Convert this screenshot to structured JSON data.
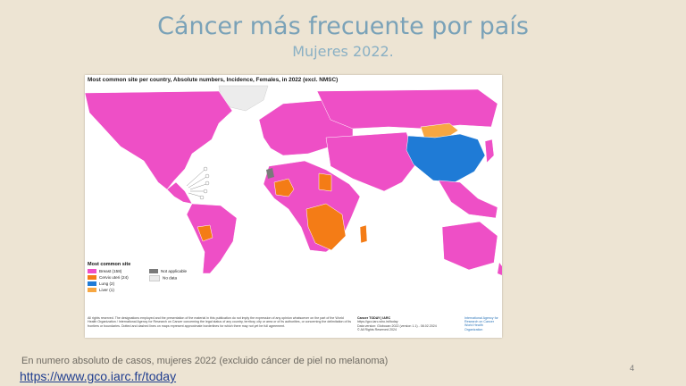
{
  "slide": {
    "title": "Cáncer más frecuente por país",
    "subtitle": "Mujeres 2022.",
    "footer_text": "En numero absoluto de casos, mujeres 2022 (excluido cáncer de piel no melanoma)",
    "footer_link": "https://www.gco.iarc.fr/today",
    "page_number": "4"
  },
  "map_panel": {
    "title": "Most common site per country, Absolute numbers, Incidence, Females, in 2022 (excl. NMSC)",
    "legend_title": "Most common site",
    "legend": [
      {
        "label": "Breast (158)",
        "color": "#ee4fc6"
      },
      {
        "label": "Cervix uteri (24)",
        "color": "#f47c16"
      },
      {
        "label": "Lung (2)",
        "color": "#1f7bd6"
      },
      {
        "label": "Liver (1)",
        "color": "#f7a742"
      },
      {
        "label": "Not applicable",
        "color": "#7a7a7a"
      },
      {
        "label": "No data",
        "color": "#ececec"
      }
    ],
    "disclaimer": "All rights reserved. The designations employed and the presentation of the material in this publication do not imply the expression of any opinion whatsoever on the part of the World Health Organization / International Agency for Research on Cancer concerning the legal status of any country, territory, city or area or of its authorities, or concerning the delimitation of its frontiers or boundaries. Dotted and dashed lines on maps represent approximate borderlines for which there may not yet be full agreement.",
    "source_title": "Cancer TODAY | IARC",
    "source_lines": [
      "https://gco.iarc.who.int/today",
      "Data version: Globocan 2022 (version 1.1) - 08.02.2024",
      "© All Rights Reserved 2024"
    ],
    "logo_iarc": "International Agency for Research on Cancer",
    "logo_who": "World Health Organization"
  }
}
